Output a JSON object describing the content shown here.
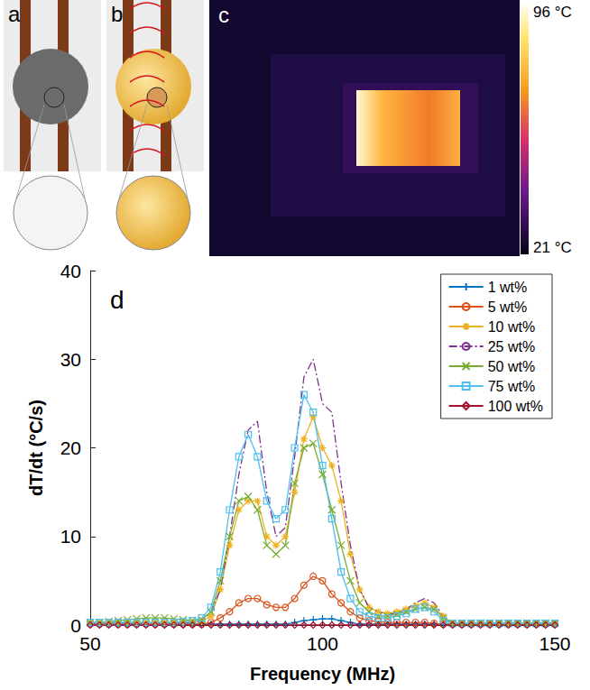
{
  "panels": {
    "a": {
      "label": "a"
    },
    "b": {
      "label": "b"
    },
    "c": {
      "label": "c",
      "color_bar": {
        "max_label": "96 °C",
        "min_label": "21 °C"
      }
    }
  },
  "chart_data": {
    "type": "line",
    "panel_label": "d",
    "x_label": "Frequency (MHz)",
    "y_label": "dT/dt (°C/s)",
    "xlim": [
      50,
      150
    ],
    "xticks": [
      50,
      100,
      150
    ],
    "ylim": [
      0,
      40
    ],
    "yticks": [
      0,
      10,
      20,
      30,
      40
    ],
    "grid": false,
    "legend": "upper right",
    "x": [
      50,
      52,
      54,
      56,
      58,
      60,
      62,
      64,
      66,
      68,
      70,
      72,
      74,
      76,
      78,
      80,
      82,
      84,
      86,
      88,
      90,
      92,
      94,
      96,
      98,
      100,
      102,
      104,
      106,
      108,
      110,
      112,
      114,
      116,
      118,
      120,
      122,
      124,
      126,
      128,
      130,
      132,
      134,
      136,
      138,
      140,
      142,
      144,
      146,
      148,
      150
    ],
    "series": [
      {
        "name": "1 wt%",
        "color": "#0072BD",
        "marker": "+",
        "line_style": "solid",
        "values": [
          0.1,
          0.1,
          0.1,
          0.1,
          0.1,
          0.1,
          0.1,
          0.1,
          0.1,
          0.1,
          0.1,
          0.1,
          0.1,
          0.1,
          0.1,
          0.1,
          0.1,
          0.1,
          0.1,
          0.1,
          0.1,
          0.1,
          0.3,
          0.5,
          0.6,
          0.7,
          0.7,
          0.5,
          0.3,
          0.1,
          0.1,
          0.1,
          0.1,
          0.1,
          0.1,
          0.1,
          0.1,
          0.1,
          0.1,
          0.1,
          0.1,
          0.1,
          0.1,
          0.1,
          0.1,
          0.1,
          0.1,
          0.1,
          0.1,
          0.1,
          0.1
        ]
      },
      {
        "name": "5 wt%",
        "color": "#D95319",
        "marker": "o",
        "line_style": "solid",
        "values": [
          0.1,
          0.1,
          0.1,
          0.1,
          0.1,
          0.1,
          0.1,
          0.1,
          0.1,
          0.1,
          0.1,
          0.1,
          0.1,
          0.3,
          0.8,
          1.5,
          2.5,
          3,
          3,
          2.3,
          2,
          2,
          3,
          4.5,
          5.5,
          5,
          3.5,
          2.5,
          1.5,
          0.8,
          0.5,
          0.4,
          0.3,
          0.3,
          0.3,
          0.3,
          0.3,
          0.2,
          0.1,
          0.1,
          0.1,
          0.1,
          0.1,
          0.1,
          0.1,
          0.1,
          0.1,
          0.1,
          0.1,
          0.1,
          0.1
        ]
      },
      {
        "name": "10 wt%",
        "color": "#EDB120",
        "marker": "*",
        "line_style": "solid",
        "values": [
          0.3,
          0.3,
          0.3,
          0.3,
          0.3,
          0.3,
          0.3,
          0.3,
          0.3,
          0.3,
          0.3,
          0.3,
          0.4,
          1,
          4,
          9,
          13,
          14,
          14,
          10,
          9,
          10,
          15,
          21,
          23.5,
          20,
          18,
          14,
          8,
          4,
          2,
          1.5,
          1.3,
          1.5,
          1.8,
          2.2,
          2.5,
          2,
          1,
          0.2,
          0.2,
          0.2,
          0.2,
          0.2,
          0.2,
          0.2,
          0.2,
          0.2,
          0.2,
          0.2,
          0.2
        ]
      },
      {
        "name": "25 wt%",
        "color": "#7E2F8E",
        "marker": "none",
        "line_style": "dashdot",
        "values": [
          0.2,
          0.2,
          0.2,
          0.2,
          0.2,
          0.2,
          0.2,
          0.2,
          0.2,
          0.2,
          0.2,
          0.3,
          0.5,
          1.5,
          4,
          10,
          17,
          22,
          23,
          15,
          10,
          11,
          19,
          28,
          30,
          25,
          24,
          16,
          9,
          4,
          2,
          1.5,
          1.2,
          1.3,
          1.8,
          2.5,
          3,
          2.5,
          1,
          0.2,
          0.2,
          0.2,
          0.2,
          0.2,
          0.2,
          0.2,
          0.2,
          0.2,
          0.2,
          0.2,
          0.2
        ]
      },
      {
        "name": "50 wt%",
        "color": "#77AC30",
        "marker": "x",
        "line_style": "solid",
        "values": [
          0.3,
          0.3,
          0.4,
          0.5,
          0.6,
          0.7,
          0.8,
          0.8,
          0.8,
          0.7,
          0.6,
          0.5,
          0.6,
          1.5,
          5,
          10,
          14,
          14.5,
          13,
          9,
          8,
          9,
          16,
          20,
          20.5,
          17,
          13,
          9,
          5,
          2.5,
          1.5,
          1,
          1,
          1.2,
          1.5,
          1.8,
          2,
          1.8,
          0.8,
          0.2,
          0.2,
          0.2,
          0.2,
          0.2,
          0.2,
          0.2,
          0.2,
          0.2,
          0.2,
          0.2,
          0.2
        ]
      },
      {
        "name": "75 wt%",
        "color": "#4DBEEE",
        "marker": "s",
        "line_style": "solid",
        "values": [
          0.3,
          0.3,
          0.3,
          0.3,
          0.3,
          0.3,
          0.3,
          0.3,
          0.3,
          0.3,
          0.4,
          0.5,
          0.8,
          2,
          6,
          13,
          19,
          21.5,
          19,
          14,
          12,
          13,
          20,
          26,
          24,
          18,
          12,
          6,
          3,
          1.5,
          1,
          0.8,
          0.8,
          1,
          1.3,
          1.8,
          2,
          1.5,
          0.5,
          0.2,
          0.2,
          0.2,
          0.2,
          0.2,
          0.2,
          0.2,
          0.2,
          0.2,
          0.2,
          0.2,
          0.2
        ]
      },
      {
        "name": "100 wt%",
        "color": "#A2142F",
        "marker": "d",
        "line_style": "solid",
        "values": [
          0,
          0,
          0,
          0,
          0,
          0,
          0,
          0,
          0,
          0,
          0,
          0,
          0,
          0,
          0,
          0,
          0,
          0,
          0,
          0,
          0,
          0,
          0,
          0,
          0,
          0,
          0,
          0,
          0,
          0,
          0,
          0,
          0,
          0,
          0,
          0,
          0,
          0,
          0,
          0,
          0,
          0,
          0,
          0,
          0,
          0,
          0,
          0,
          0,
          0,
          0
        ]
      }
    ]
  }
}
